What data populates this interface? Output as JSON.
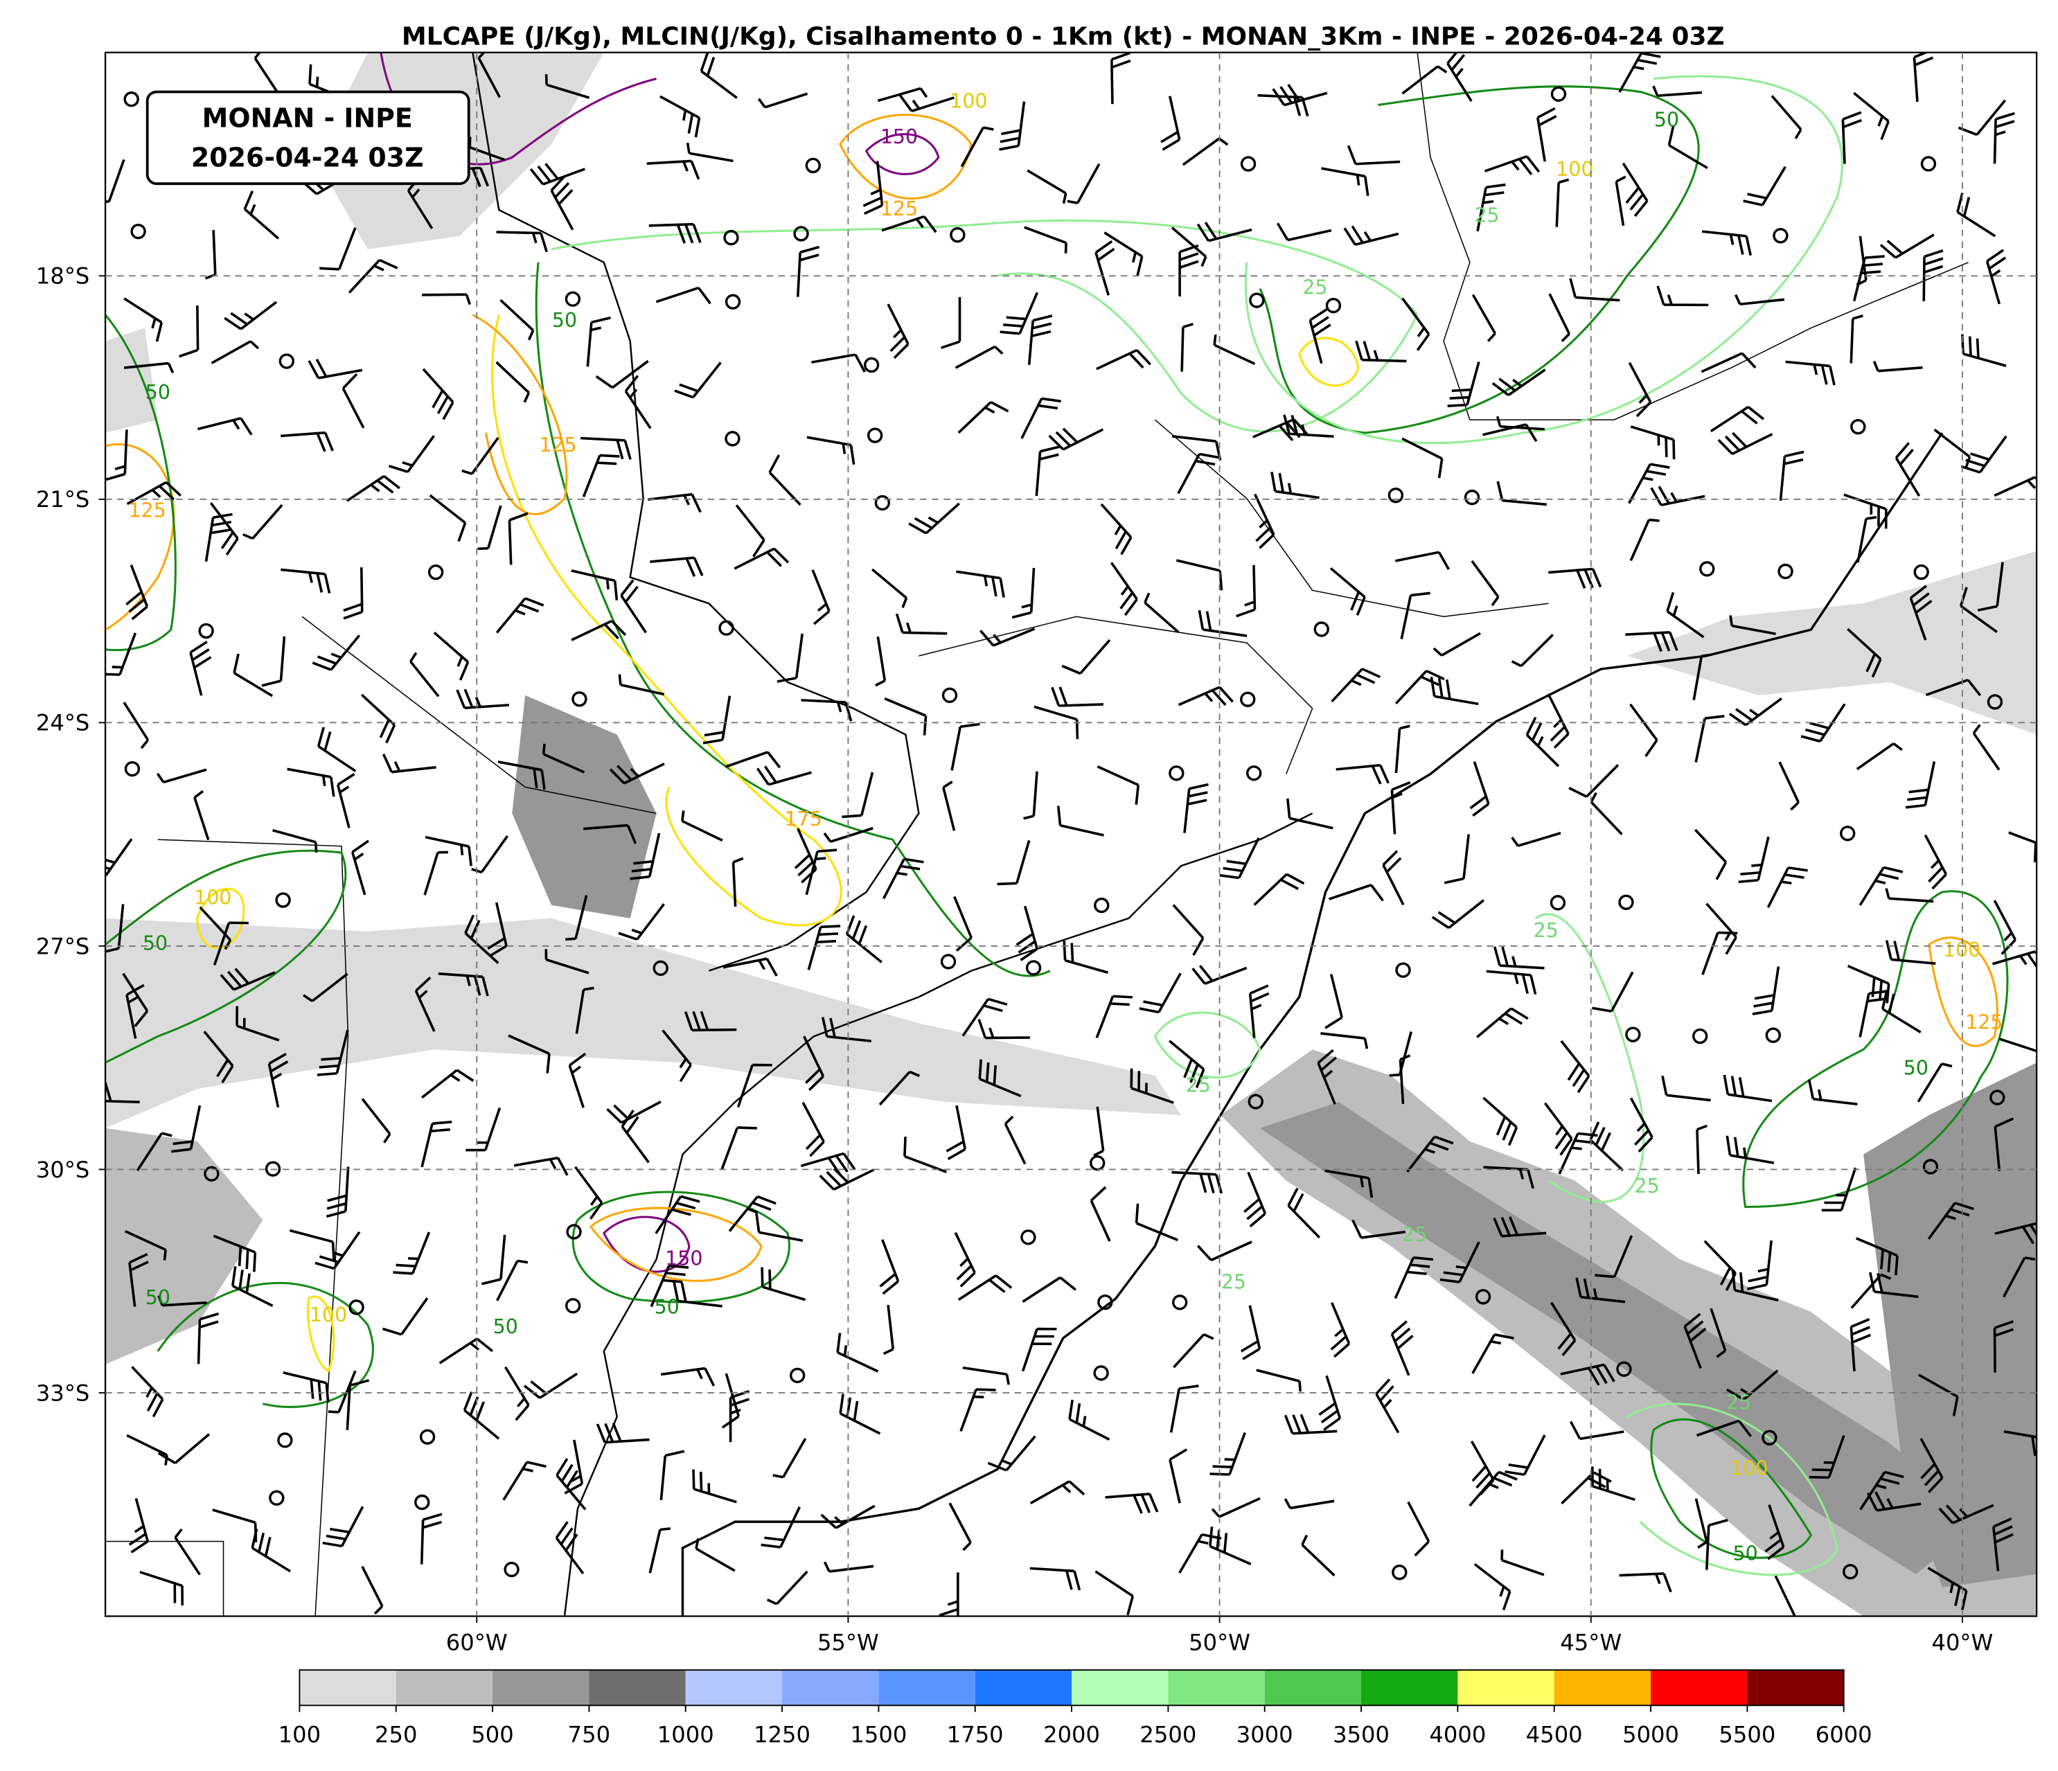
{
  "title": "MLCAPE (J/Kg), MLCIN(J/Kg), Cisalhamento 0 - 1Km (kt) - MONAN_3Km - INPE - 2026-04-24 03Z",
  "label_box": [
    "MONAN - INPE",
    "2026-04-24 03Z"
  ],
  "map": {
    "xlim": [
      -65,
      -39
    ],
    "ylim": [
      -36,
      -15
    ],
    "grid": true,
    "xticks": [
      {
        "value": -60,
        "label": "60°W"
      },
      {
        "value": -55,
        "label": "55°W"
      },
      {
        "value": -50,
        "label": "50°W"
      },
      {
        "value": -45,
        "label": "45°W"
      },
      {
        "value": -40,
        "label": "40°W"
      }
    ],
    "yticks": [
      {
        "value": -18,
        "label": "18°S"
      },
      {
        "value": -21,
        "label": "21°S"
      },
      {
        "value": -24,
        "label": "24°S"
      },
      {
        "value": -27,
        "label": "27°S"
      },
      {
        "value": -30,
        "label": "30°S"
      },
      {
        "value": -33,
        "label": "33°S"
      }
    ]
  },
  "colorbar": {
    "bounds": [
      100,
      250,
      500,
      750,
      1000,
      1250,
      1500,
      1750,
      2000,
      2500,
      3000,
      3500,
      4000,
      4500,
      5000,
      5500,
      6000
    ],
    "colors": [
      "#dcdcdc",
      "#bdbdbd",
      "#979797",
      "#6e6e6e",
      "#b4c8ff",
      "#87aaff",
      "#5a96ff",
      "#1e78ff",
      "#b4ffb4",
      "#82e682",
      "#50c850",
      "#14aa14",
      "#ffff64",
      "#ffb400",
      "#ff0000",
      "#800000"
    ]
  },
  "contour_labels": [
    50,
    125,
    150,
    100,
    125,
    50,
    100,
    25,
    25,
    100,
    50,
    125,
    50,
    50,
    50,
    50,
    100,
    25,
    25,
    25,
    25,
    25,
    100,
    125,
    50,
    100,
    50,
    25,
    150,
    175
  ]
}
